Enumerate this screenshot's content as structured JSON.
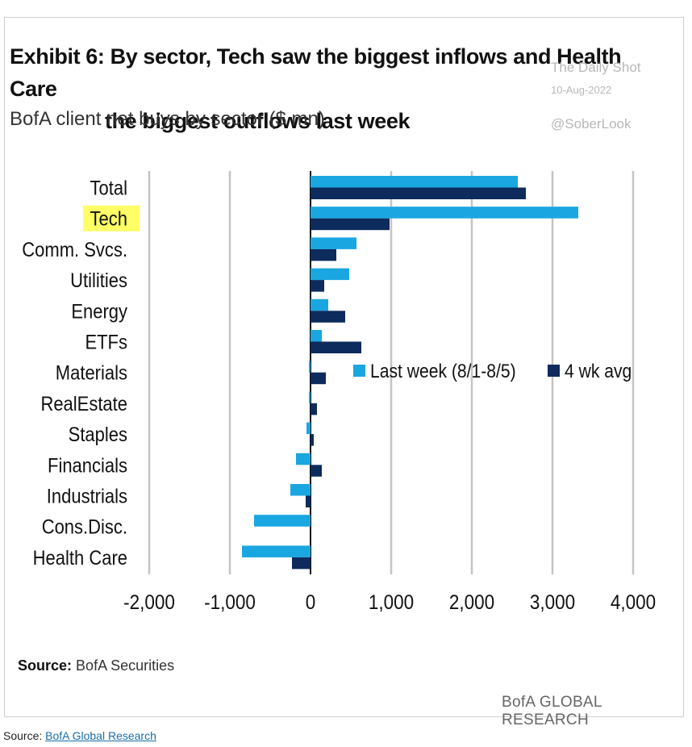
{
  "title_line1": "Exhibit 6: By sector, Tech saw the biggest inflows and Health Care",
  "title_line2": "the biggest outflows last week",
  "subtitle": "BofA client net buys by sector ($ mn)",
  "watermark": {
    "line1": "The Daily Shot",
    "line2": "10-Aug-2022",
    "line3": "@SoberLook"
  },
  "source_label": "Source:",
  "source_text": "BofA Securities",
  "brand": "BofA GLOBAL RESEARCH",
  "footer": {
    "prefix": "Source:",
    "link_text": "BofA Global Research"
  },
  "colors": {
    "last_week": "#1aa6e0",
    "four_wk_avg": "#0d2b5c",
    "highlight": "#ffff66"
  },
  "chart_data": {
    "type": "bar",
    "orientation": "horizontal",
    "categories": [
      "Total",
      "Tech",
      "Comm. Svcs.",
      "Utilities",
      "Energy",
      "ETFs",
      "Materials",
      "RealEstate",
      "Staples",
      "Financials",
      "Industrials",
      "Cons.Disc.",
      "Health Care"
    ],
    "highlighted_category": "Tech",
    "series": [
      {
        "name": "Last week (8/1-8/5)",
        "values": [
          2570,
          3320,
          570,
          480,
          220,
          140,
          -20,
          -20,
          -50,
          -180,
          -250,
          -700,
          -850
        ]
      },
      {
        "name": "4 wk avg",
        "values": [
          2670,
          980,
          320,
          170,
          430,
          630,
          190,
          80,
          40,
          140,
          -60,
          0,
          -230
        ]
      }
    ],
    "xlim": [
      -2000,
      4000
    ],
    "xticks": [
      "-2,000",
      "-1,000",
      "0",
      "1,000",
      "2,000",
      "3,000",
      "4,000"
    ],
    "xtick_values": [
      -2000,
      -1000,
      0,
      1000,
      2000,
      3000,
      4000
    ],
    "grid": true,
    "legend_position": "center-right"
  }
}
